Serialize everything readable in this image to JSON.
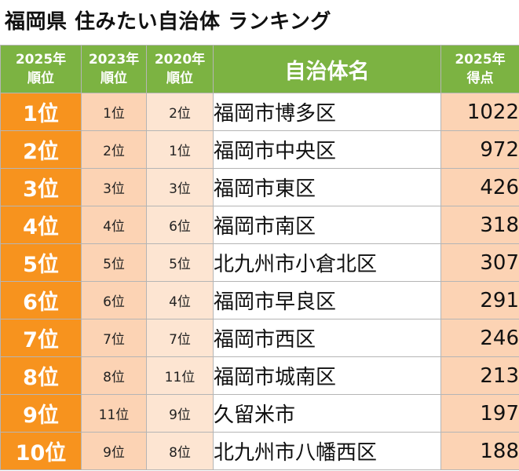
{
  "title": "福岡県 住みたい自治体 ランキング",
  "headers": {
    "rank_2025": [
      "2025年",
      "順位"
    ],
    "rank_2023": [
      "2023年",
      "順位"
    ],
    "rank_2020": [
      "2020年",
      "順位"
    ],
    "name": "自治体名",
    "score_2025": [
      "2025年",
      "得点"
    ]
  },
  "rows": [
    {
      "rank": "1位",
      "rank_2023": "1位",
      "rank_2020": "2位",
      "name": "福岡市博多区",
      "score": "1022"
    },
    {
      "rank": "2位",
      "rank_2023": "2位",
      "rank_2020": "1位",
      "name": "福岡市中央区",
      "score": "972"
    },
    {
      "rank": "3位",
      "rank_2023": "3位",
      "rank_2020": "3位",
      "name": "福岡市東区",
      "score": "426"
    },
    {
      "rank": "4位",
      "rank_2023": "4位",
      "rank_2020": "6位",
      "name": "福岡市南区",
      "score": "318"
    },
    {
      "rank": "5位",
      "rank_2023": "5位",
      "rank_2020": "5位",
      "name": "北九州市小倉北区",
      "score": "307"
    },
    {
      "rank": "6位",
      "rank_2023": "6位",
      "rank_2020": "4位",
      "name": "福岡市早良区",
      "score": "291"
    },
    {
      "rank": "7位",
      "rank_2023": "7位",
      "rank_2020": "7位",
      "name": "福岡市西区",
      "score": "246"
    },
    {
      "rank": "8位",
      "rank_2023": "8位",
      "rank_2020": "11位",
      "name": "福岡市城南区",
      "score": "213"
    },
    {
      "rank": "9位",
      "rank_2023": "11位",
      "rank_2020": "9位",
      "name": "久留米市",
      "score": "197"
    },
    {
      "rank": "10位",
      "rank_2023": "9位",
      "rank_2020": "8位",
      "name": "北九州市八幡西区",
      "score": "188"
    }
  ],
  "colors": {
    "header_green": "#7cb342",
    "rank_orange": "#f7931e",
    "peach": "#fcd3b4",
    "light_peach": "#fde5d2"
  }
}
